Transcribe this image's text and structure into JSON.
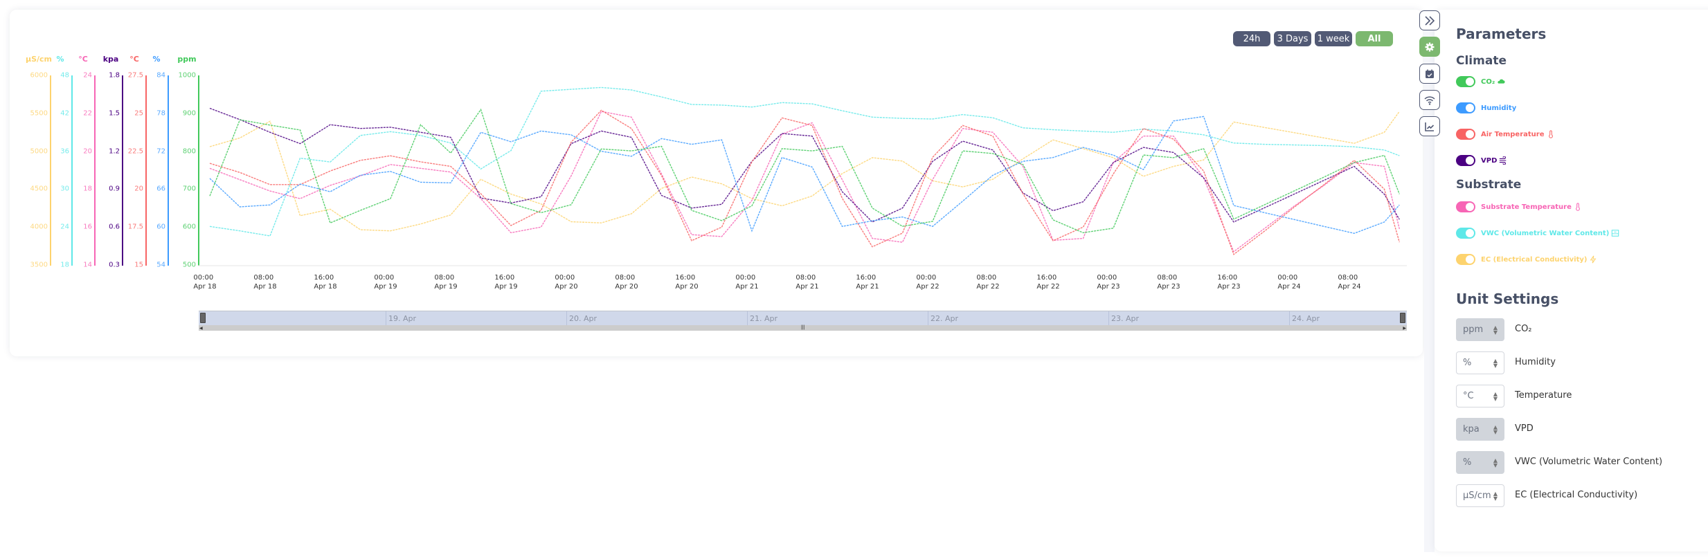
{
  "range_buttons": [
    {
      "label": "24h",
      "active": false
    },
    {
      "label": "3 Days",
      "active": false
    },
    {
      "label": "1 week",
      "active": false
    },
    {
      "label": "All",
      "active": true
    }
  ],
  "colors": {
    "accent": "#7cb86f",
    "button_dark": "#525a75",
    "ec": "#fdd36e",
    "vwc": "#5ee8e8",
    "substrate_temp": "#f765b5",
    "vpd": "#4b0082",
    "air_temp": "#f86464",
    "humidity": "#3d9bff",
    "co2": "#41c95a"
  },
  "chart_data": {
    "type": "line",
    "grid": false,
    "x": [
      "Apr 18 00:00",
      "Apr 18 04:00",
      "Apr 18 08:00",
      "Apr 18 12:00",
      "Apr 18 16:00",
      "Apr 18 20:00",
      "Apr 19 00:00",
      "Apr 19 04:00",
      "Apr 19 08:00",
      "Apr 19 12:00",
      "Apr 19 16:00",
      "Apr 19 20:00",
      "Apr 20 00:00",
      "Apr 20 04:00",
      "Apr 20 08:00",
      "Apr 20 12:00",
      "Apr 20 16:00",
      "Apr 20 20:00",
      "Apr 21 00:00",
      "Apr 21 04:00",
      "Apr 21 08:00",
      "Apr 21 12:00",
      "Apr 21 16:00",
      "Apr 21 20:00",
      "Apr 22 00:00",
      "Apr 22 04:00",
      "Apr 22 08:00",
      "Apr 22 12:00",
      "Apr 22 16:00",
      "Apr 22 20:00",
      "Apr 23 00:00",
      "Apr 23 04:00",
      "Apr 23 08:00",
      "Apr 23 12:00",
      "Apr 23 16:00",
      "Apr 23 20:00",
      "Apr 24 00:00",
      "Apr 24 04:00",
      "Apr 24 08:00",
      "Apr 24 12:00",
      "Apr 24 14:00"
    ],
    "x_tick_labels": [
      {
        "time": "00:00",
        "date": "Apr 18"
      },
      {
        "time": "08:00",
        "date": "Apr 18"
      },
      {
        "time": "16:00",
        "date": "Apr 18"
      },
      {
        "time": "00:00",
        "date": "Apr 19"
      },
      {
        "time": "08:00",
        "date": "Apr 19"
      },
      {
        "time": "16:00",
        "date": "Apr 19"
      },
      {
        "time": "00:00",
        "date": "Apr 20"
      },
      {
        "time": "08:00",
        "date": "Apr 20"
      },
      {
        "time": "16:00",
        "date": "Apr 20"
      },
      {
        "time": "00:00",
        "date": "Apr 21"
      },
      {
        "time": "08:00",
        "date": "Apr 21"
      },
      {
        "time": "16:00",
        "date": "Apr 21"
      },
      {
        "time": "00:00",
        "date": "Apr 22"
      },
      {
        "time": "08:00",
        "date": "Apr 22"
      },
      {
        "time": "16:00",
        "date": "Apr 22"
      },
      {
        "time": "00:00",
        "date": "Apr 23"
      },
      {
        "time": "08:00",
        "date": "Apr 23"
      },
      {
        "time": "16:00",
        "date": "Apr 23"
      },
      {
        "time": "00:00",
        "date": "Apr 24"
      },
      {
        "time": "08:00",
        "date": "Apr 24"
      }
    ],
    "navigator_labels": [
      "19. Apr",
      "20. Apr",
      "21. Apr",
      "22. Apr",
      "23. Apr",
      "24. Apr"
    ],
    "series": [
      {
        "name": "EC (Electrical Conductivity)",
        "key": "ec",
        "unit": "µS/cm",
        "color": "#fdd36e",
        "ylim": [
          3500,
          6000
        ],
        "ticks": [
          "6000",
          "5500",
          "5000",
          "4500",
          "4000",
          "3500"
        ],
        "values": [
          5060,
          5175,
          5395,
          4150,
          4235,
          3965,
          3950,
          4040,
          4160,
          4630,
          4435,
          4305,
          4070,
          4055,
          4175,
          4510,
          4660,
          4570,
          4375,
          4280,
          4410,
          4705,
          4915,
          4870,
          4610,
          4530,
          4630,
          4900,
          5150,
          5035,
          4915,
          4670,
          4800,
          4885,
          5385,
          5315,
          5245,
          5175,
          5105,
          5250,
          5525
        ]
      },
      {
        "name": "VWC (Volumetric Water Content)",
        "key": "vwc",
        "unit": "%",
        "color": "#5ee8e8",
        "ylim": [
          18,
          48
        ],
        "ticks": [
          "48",
          "42",
          "36",
          "30",
          "24",
          "18"
        ],
        "values": [
          24.1,
          23.4,
          22.6,
          34.9,
          34.3,
          38.5,
          39.1,
          38.5,
          37.3,
          33.2,
          36.1,
          45.5,
          45.8,
          46.1,
          45.7,
          44.6,
          43.4,
          43.3,
          43.0,
          43.7,
          43.5,
          42.4,
          41.4,
          41.2,
          41.1,
          41.8,
          41.3,
          39.7,
          39.4,
          39.2,
          39.0,
          39.5,
          39.2,
          38.6,
          37.3,
          37.1,
          37.0,
          36.9,
          36.7,
          36.2,
          35.3
        ]
      },
      {
        "name": "Substrate Temperature",
        "key": "substrate_temp",
        "unit": "°C",
        "color": "#f765b5",
        "ylim": [
          14,
          24
        ],
        "ticks": [
          "24",
          "22",
          "20",
          "18",
          "16",
          "14"
        ],
        "values": [
          19.1,
          18.5,
          17.9,
          17.5,
          18.2,
          18.7,
          19.3,
          19.1,
          18.9,
          17.5,
          15.7,
          16.0,
          18.7,
          22.1,
          21.8,
          18.8,
          15.6,
          15.5,
          17.4,
          20.9,
          21.5,
          18.5,
          15.4,
          15.2,
          18.5,
          21.2,
          21.0,
          19.2,
          15.3,
          15.4,
          19.4,
          20.8,
          20.8,
          18.6,
          14.7,
          15.9,
          17.1,
          18.2,
          19.4,
          19.2,
          15.9
        ]
      },
      {
        "name": "VPD",
        "key": "vpd",
        "unit": "kpa",
        "color": "#4b0082",
        "ylim": [
          0.3,
          1.8
        ],
        "ticks": [
          "1.8",
          "1.5",
          "1.2",
          "0.9",
          "0.6",
          "0.3"
        ],
        "values": [
          1.54,
          1.45,
          1.35,
          1.26,
          1.41,
          1.38,
          1.39,
          1.35,
          1.31,
          0.83,
          0.79,
          0.84,
          1.26,
          1.36,
          1.31,
          0.85,
          0.75,
          0.78,
          1.12,
          1.34,
          1.32,
          0.88,
          0.64,
          0.75,
          1.12,
          1.28,
          1.21,
          0.87,
          0.73,
          0.8,
          1.11,
          1.23,
          1.19,
          0.99,
          0.64,
          0.75,
          0.86,
          0.97,
          1.08,
          0.86,
          0.66
        ]
      },
      {
        "name": "Air Temperature",
        "key": "air_temp",
        "unit": "°C",
        "color": "#f86464",
        "ylim": [
          15,
          27.5
        ],
        "ticks": [
          "27.5",
          "25",
          "22.5",
          "20",
          "17.5",
          "15"
        ],
        "values": [
          21.7,
          21.1,
          20.3,
          20.3,
          21.2,
          21.9,
          22.2,
          21.8,
          21.5,
          19.7,
          17.6,
          18.6,
          23.1,
          25.2,
          24.0,
          20.9,
          16.6,
          17.5,
          21.8,
          24.7,
          24.2,
          19.4,
          16.2,
          17.1,
          22.1,
          24.2,
          23.5,
          19.7,
          16.6,
          17.5,
          21.0,
          24.0,
          23.3,
          21.2,
          15.7,
          17.2,
          18.8,
          20.3,
          21.9,
          20.0,
          16.5
        ]
      },
      {
        "name": "Humidity",
        "key": "humidity",
        "unit": "%",
        "color": "#3d9bff",
        "ylim": [
          54,
          84
        ],
        "ticks": [
          "84",
          "78",
          "72",
          "66",
          "60",
          "54"
        ],
        "values": [
          67.7,
          63.2,
          63.5,
          66.8,
          65.6,
          68.2,
          68.8,
          67.1,
          67.0,
          75.0,
          73.5,
          75.2,
          74.6,
          72.0,
          71.2,
          74.0,
          73.1,
          73.8,
          59.4,
          71.0,
          69.5,
          60.1,
          61.0,
          61.6,
          60.1,
          64.1,
          68.2,
          70.4,
          71.0,
          72.6,
          71.4,
          69.1,
          76.8,
          77.5,
          63.4,
          62.3,
          61.2,
          60.1,
          59.0,
          60.8,
          63.5
        ]
      },
      {
        "name": "CO₂",
        "key": "co2",
        "unit": "ppm",
        "color": "#41c95a",
        "ylim": [
          500,
          1000
        ],
        "ticks": [
          "1000",
          "900",
          "800",
          "700",
          "600",
          "500"
        ],
        "values": [
          682,
          883,
          869,
          856,
          611,
          644,
          675,
          870,
          795,
          910,
          662,
          638,
          659,
          806,
          801,
          813,
          644,
          617,
          656,
          807,
          801,
          813,
          650,
          602,
          615,
          801,
          794,
          765,
          619,
          585,
          597,
          790,
          783,
          807,
          621,
          658,
          695,
          732,
          770,
          789,
          687
        ]
      }
    ]
  },
  "side_icons": [
    {
      "icon": "chevrons-right-icon",
      "active": false
    },
    {
      "icon": "gear-icon",
      "active": true
    },
    {
      "icon": "calendar-check-icon",
      "active": false
    },
    {
      "icon": "wifi-icon",
      "active": false
    },
    {
      "icon": "chart-line-icon",
      "active": false
    }
  ],
  "parameters": {
    "title": "Parameters",
    "climate_title": "Climate",
    "substrate_title": "Substrate",
    "climate": [
      {
        "label": "CO₂",
        "icon": "cloud-icon",
        "color": "#41c95a",
        "enabled": true
      },
      {
        "label": "Humidity",
        "icon": "droplet-icon",
        "color": "#3d9bff",
        "enabled": true
      },
      {
        "label": "Air Temperature",
        "icon": "thermometer-icon",
        "color": "#f86464",
        "enabled": true
      },
      {
        "label": "VPD",
        "icon": "wind-icon",
        "color": "#4b0082",
        "enabled": true
      }
    ],
    "substrate": [
      {
        "label": "Substrate Temperature",
        "icon": "thermometer-icon",
        "color": "#f765b5",
        "enabled": true
      },
      {
        "label": "VWC (Volumetric Water Content)",
        "icon": "box-icon",
        "color": "#5ee8e8",
        "enabled": true
      },
      {
        "label": "EC (Electrical Conductivity)",
        "icon": "bolt-icon",
        "color": "#fdd36e",
        "enabled": true
      }
    ]
  },
  "unit_settings": {
    "title": "Unit Settings",
    "rows": [
      {
        "value": "ppm",
        "label": "CO₂",
        "disabled": true
      },
      {
        "value": "%",
        "label": "Humidity",
        "disabled": false
      },
      {
        "value": "°C",
        "label": "Temperature",
        "disabled": false
      },
      {
        "value": "kpa",
        "label": "VPD",
        "disabled": true
      },
      {
        "value": "%",
        "label": "VWC (Volumetric Water Content)",
        "disabled": true
      },
      {
        "value": "µS/cm",
        "label": "EC (Electrical Conductivity)",
        "disabled": false
      }
    ]
  }
}
